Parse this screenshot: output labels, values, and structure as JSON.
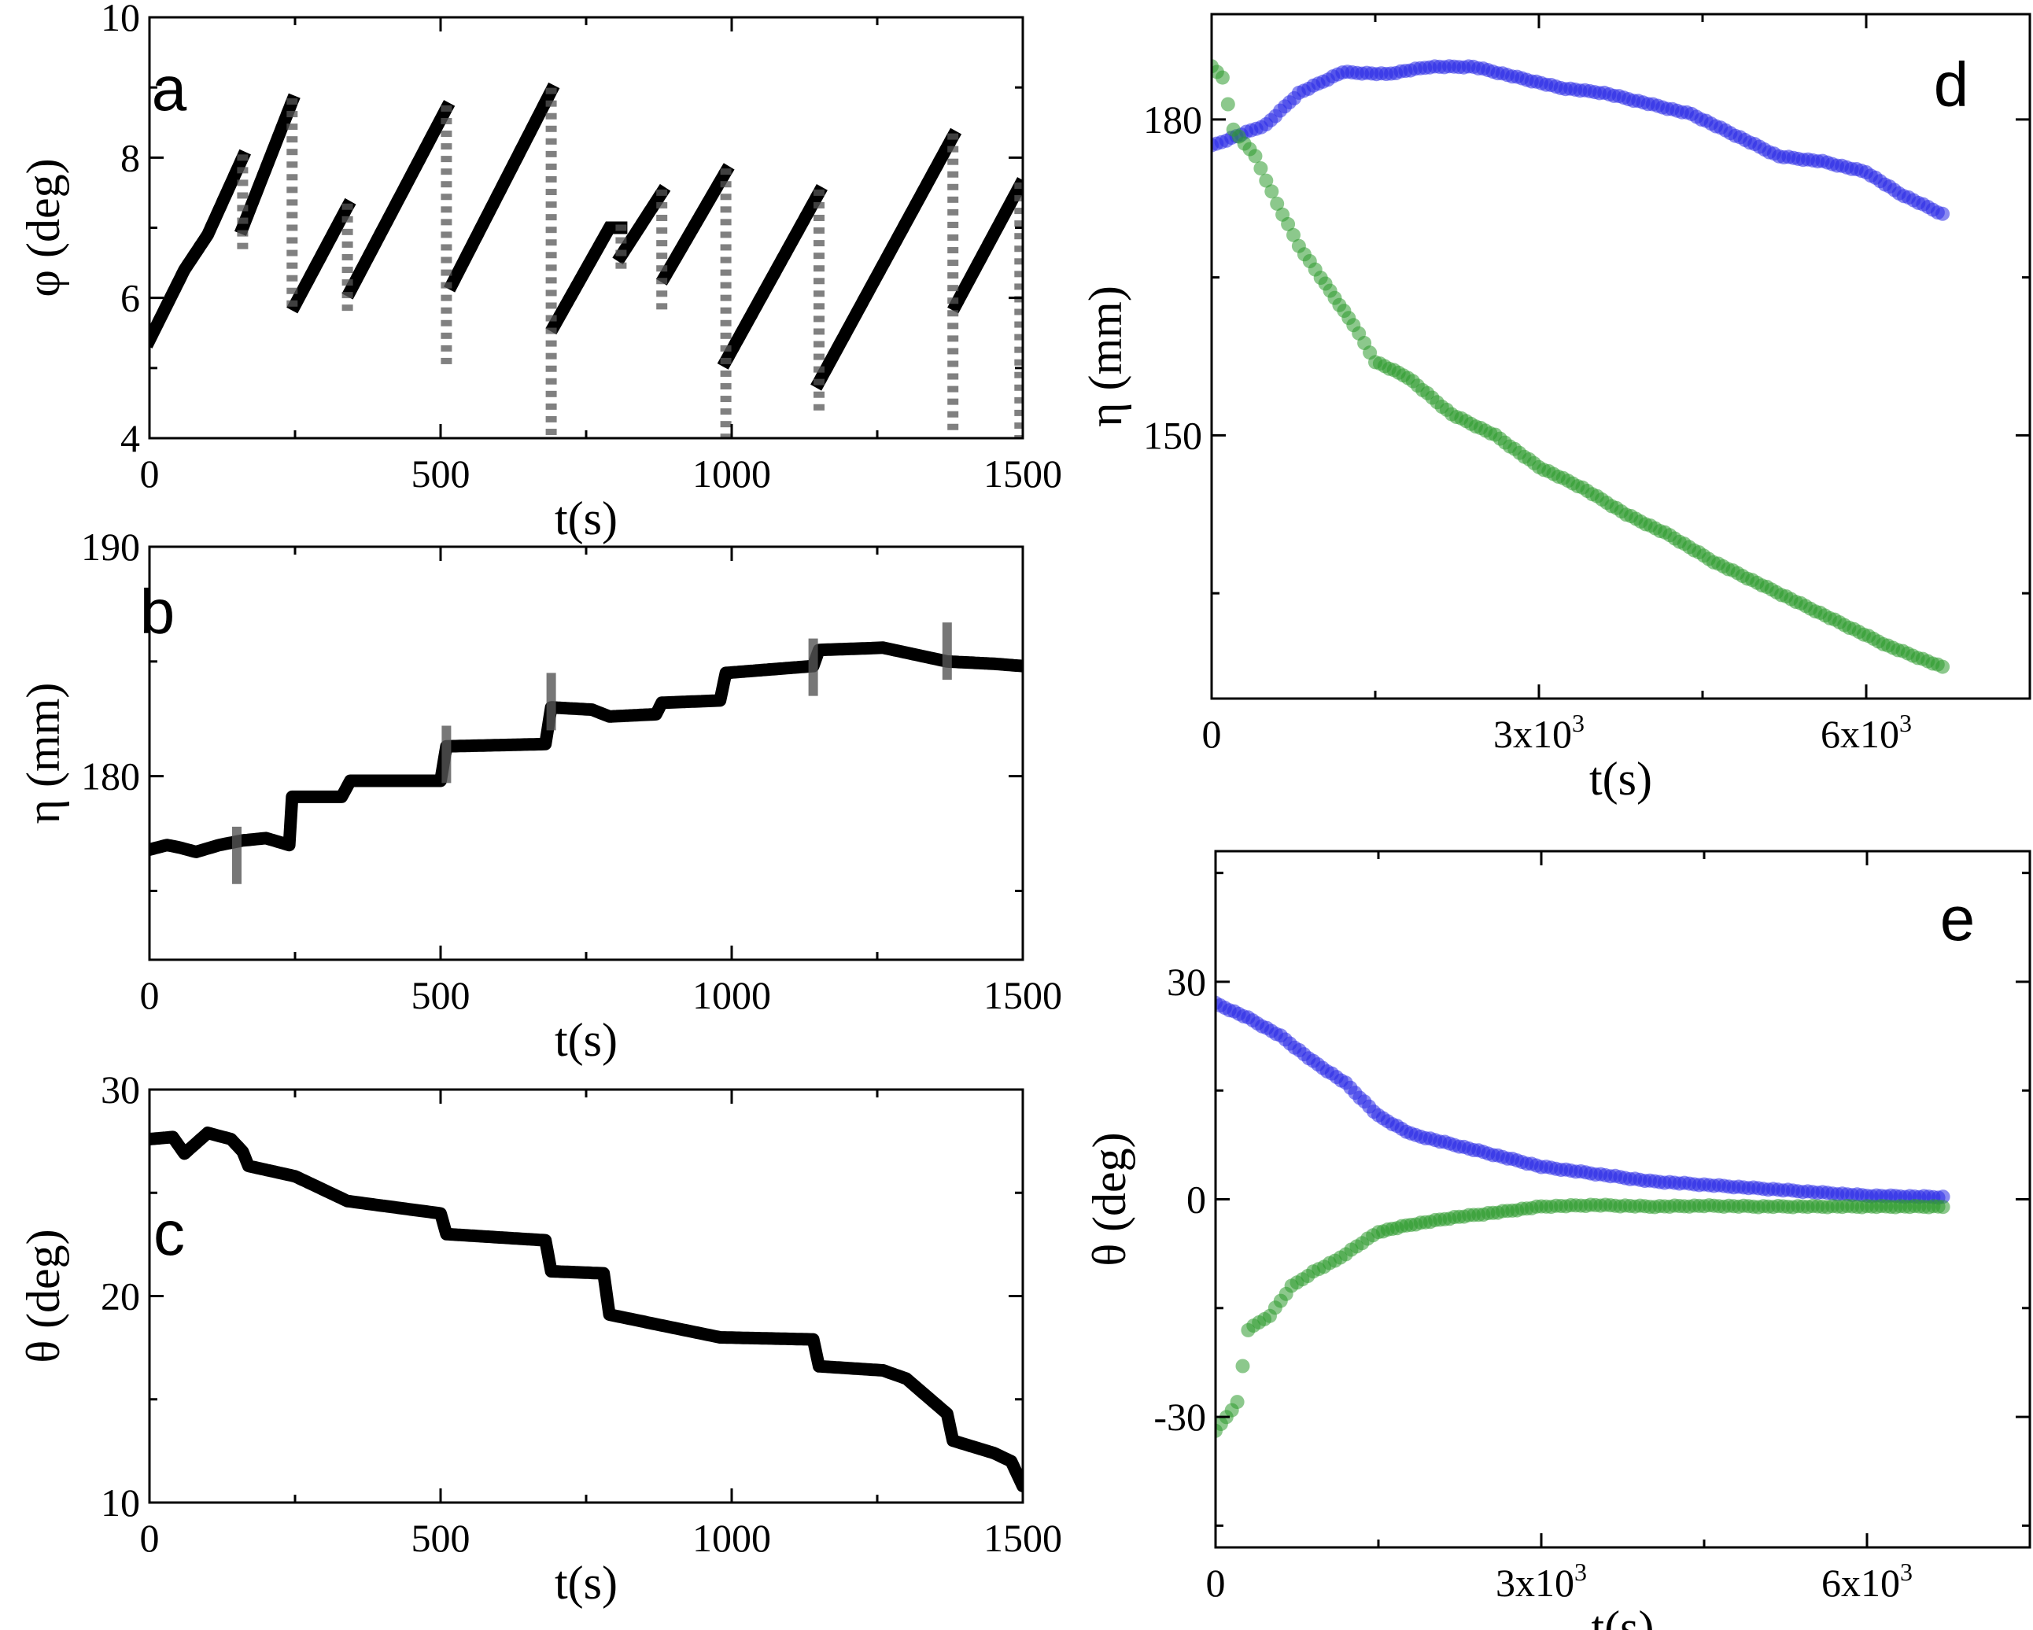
{
  "colors": {
    "black": "#000000",
    "gray": "#555555",
    "blue": "#2a2ae6",
    "green": "#2e9a2e"
  },
  "chart_data": [
    {
      "id": "a",
      "type": "scatter",
      "letter": "a",
      "xlabel": "t(s)",
      "ylabel": "φ (deg)",
      "xlim": [
        0,
        1500
      ],
      "ylim": [
        4,
        10
      ],
      "xticks": [
        "0",
        "500",
        "1000",
        "1500"
      ],
      "xtick_values": [
        0,
        500,
        1000,
        1500
      ],
      "yticks": [
        "4",
        "6",
        "8",
        "10"
      ],
      "ytick_values": [
        4,
        6,
        8,
        10
      ],
      "series": [
        {
          "name": "φ",
          "color": "#000000",
          "style": "thick-segments",
          "segments": [
            [
              [
                0,
                5.4
              ],
              [
                60,
                6.4
              ],
              [
                100,
                6.9
              ],
              [
                160,
                8.0
              ]
            ],
            [
              [
                160,
                7.0
              ],
              [
                245,
                8.8
              ]
            ],
            [
              [
                250,
                5.9
              ],
              [
                340,
                7.3
              ]
            ],
            [
              [
                345,
                6.1
              ],
              [
                510,
                8.7
              ]
            ],
            [
              [
                520,
                6.2
              ],
              [
                690,
                8.95
              ]
            ],
            [
              [
                695,
                5.6
              ],
              [
                790,
                7.0
              ],
              [
                810,
                7.0
              ]
            ],
            [
              [
                810,
                6.6
              ],
              [
                880,
                7.5
              ]
            ],
            [
              [
                885,
                6.3
              ],
              [
                990,
                7.8
              ]
            ],
            [
              [
                990,
                5.1
              ],
              [
                1150,
                7.5
              ]
            ],
            [
              [
                1150,
                4.8
              ],
              [
                1380,
                8.3
              ]
            ],
            [
              [
                1385,
                5.9
              ],
              [
                1495,
                7.6
              ]
            ]
          ]
        }
      ],
      "drops": [
        [
          160,
          8.0,
          6.6
        ],
        [
          245,
          8.8,
          5.9
        ],
        [
          340,
          7.3,
          5.8
        ],
        [
          510,
          8.7,
          5.0
        ],
        [
          690,
          8.95,
          4.0
        ],
        [
          810,
          7.0,
          6.3
        ],
        [
          880,
          7.5,
          5.8
        ],
        [
          990,
          7.8,
          4.0
        ],
        [
          1150,
          7.5,
          4.4
        ],
        [
          1380,
          8.3,
          4.0
        ],
        [
          1495,
          7.6,
          4.0
        ]
      ]
    },
    {
      "id": "b",
      "type": "scatter",
      "letter": "b",
      "xlabel": "t(s)",
      "ylabel": "η (mm)",
      "xlim": [
        0,
        1500
      ],
      "ylim": [
        172,
        190
      ],
      "xticks": [
        "0",
        "500",
        "1000",
        "1500"
      ],
      "xtick_values": [
        0,
        500,
        1000,
        1500
      ],
      "yticks": [
        "180",
        "190"
      ],
      "ytick_values": [
        180,
        190
      ],
      "series": [
        {
          "name": "η",
          "color": "#000000",
          "style": "thick-steps",
          "x": [
            0,
            30,
            50,
            80,
            120,
            160,
            200,
            240,
            245,
            330,
            345,
            500,
            510,
            680,
            690,
            760,
            790,
            870,
            880,
            980,
            990,
            1140,
            1150,
            1260,
            1370,
            1450,
            1500
          ],
          "y": [
            176.8,
            177.0,
            176.9,
            176.7,
            177.0,
            177.2,
            177.3,
            177.0,
            179.1,
            179.1,
            179.8,
            179.8,
            181.3,
            181.4,
            183.0,
            182.9,
            182.6,
            182.7,
            183.2,
            183.3,
            184.5,
            184.8,
            185.5,
            185.6,
            185.0,
            184.9,
            184.8
          ]
        }
      ],
      "spikes": [
        [
          150,
          177.8
        ],
        [
          510,
          182.2
        ],
        [
          690,
          184.5
        ],
        [
          1140,
          186.0
        ],
        [
          1370,
          186.7
        ]
      ]
    },
    {
      "id": "c",
      "type": "scatter",
      "letter": "c",
      "xlabel": "t(s)",
      "ylabel": "θ (deg)",
      "xlim": [
        0,
        1500
      ],
      "ylim": [
        10,
        30
      ],
      "xticks": [
        "0",
        "500",
        "1000",
        "1500"
      ],
      "xtick_values": [
        0,
        500,
        1000,
        1500
      ],
      "yticks": [
        "10",
        "20",
        "30"
      ],
      "ytick_values": [
        10,
        20,
        30
      ],
      "series": [
        {
          "name": "θ",
          "color": "#000000",
          "style": "thick-steps",
          "x": [
            0,
            40,
            60,
            100,
            140,
            160,
            170,
            250,
            340,
            500,
            510,
            680,
            690,
            780,
            790,
            980,
            1140,
            1150,
            1260,
            1300,
            1370,
            1380,
            1450,
            1480,
            1500
          ],
          "y": [
            27.6,
            27.7,
            26.9,
            27.9,
            27.6,
            27.0,
            26.3,
            25.8,
            24.6,
            24.0,
            23.0,
            22.7,
            21.2,
            21.1,
            19.1,
            18.0,
            17.9,
            16.6,
            16.4,
            16.0,
            14.3,
            13.0,
            12.4,
            12.0,
            10.8
          ]
        }
      ]
    },
    {
      "id": "d",
      "type": "scatter",
      "letter": "d",
      "xlabel": "t(s)",
      "ylabel": "η (mm)",
      "xlim": [
        0,
        7500
      ],
      "ylim": [
        125,
        190
      ],
      "xticks": [
        "0",
        "3x10",
        "6x10"
      ],
      "xtick_sup": [
        "",
        "3",
        "3"
      ],
      "xtick_values": [
        0,
        3000,
        6000
      ],
      "yticks": [
        "150",
        "180"
      ],
      "ytick_values": [
        150,
        180
      ],
      "series": [
        {
          "name": "blue",
          "color": "#2a2ae6",
          "x": [
            0,
            500,
            800,
            1200,
            1600,
            2000,
            2400,
            2800,
            3200,
            3600,
            4000,
            4400,
            4800,
            5200,
            5600,
            6000,
            6300,
            6700
          ],
          "y": [
            177.5,
            179.5,
            182.5,
            184.5,
            184.3,
            185.0,
            185.0,
            184.0,
            183.0,
            182.5,
            181.5,
            180.5,
            178.5,
            176.5,
            176.0,
            175.0,
            173.0,
            171.0
          ]
        },
        {
          "name": "green",
          "color": "#2e9a2e",
          "x": [
            0,
            100,
            200,
            400,
            600,
            800,
            1000,
            1300,
            1500,
            1800,
            2200,
            2600,
            3000,
            3400,
            3800,
            4200,
            4600,
            5000,
            5400,
            5800,
            6200,
            6700
          ],
          "y": [
            185.0,
            184.0,
            179.0,
            176.5,
            172.0,
            168.0,
            165.0,
            160.5,
            157.0,
            155.5,
            152.0,
            150.0,
            147.0,
            145.0,
            142.5,
            140.5,
            138.0,
            136.0,
            134.0,
            132.0,
            130.0,
            128.0
          ]
        }
      ]
    },
    {
      "id": "e",
      "type": "scatter",
      "letter": "e",
      "xlabel": "t(s)",
      "ylabel": "θ (deg)",
      "xlim": [
        0,
        7500
      ],
      "ylim": [
        -48,
        48
      ],
      "xticks": [
        "0",
        "3x10",
        "6x10"
      ],
      "xtick_sup": [
        "",
        "3",
        "3"
      ],
      "xtick_values": [
        0,
        3000,
        6000
      ],
      "yticks": [
        "30",
        "0",
        "-30"
      ],
      "ytick_values": [
        30,
        0,
        -30
      ],
      "series": [
        {
          "name": "blue",
          "color": "#2a2ae6",
          "x": [
            0,
            300,
            600,
            900,
            1200,
            1500,
            1800,
            2200,
            2600,
            3000,
            3500,
            4000,
            4500,
            5000,
            5500,
            6000,
            6700
          ],
          "y": [
            27.0,
            25.0,
            22.5,
            19.0,
            16.0,
            11.5,
            9.0,
            7.5,
            6.0,
            4.5,
            3.5,
            2.5,
            2.0,
            1.5,
            1.0,
            0.5,
            0.3
          ]
        },
        {
          "name": "green",
          "color": "#2e9a2e",
          "x": [
            0,
            200,
            300,
            500,
            700,
            900,
            1100,
            1300,
            1500,
            1800,
            2200,
            2600,
            3000,
            3500,
            4000,
            4500,
            5000,
            5500,
            6000,
            6700
          ],
          "y": [
            -32.0,
            -28.0,
            -18.0,
            -16.0,
            -12.0,
            -10.0,
            -8.5,
            -6.5,
            -4.5,
            -3.5,
            -2.5,
            -1.8,
            -1.0,
            -0.8,
            -1.0,
            -0.9,
            -1.0,
            -1.0,
            -1.0,
            -1.0
          ]
        }
      ]
    }
  ]
}
